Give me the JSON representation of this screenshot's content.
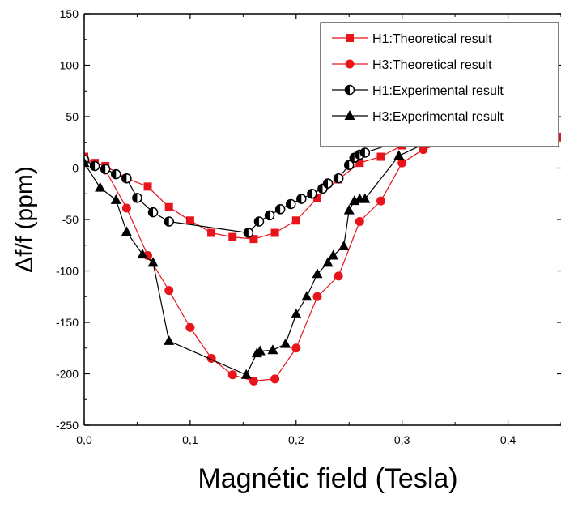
{
  "chart_data": {
    "type": "line",
    "xlabel": "Magnétic field (Tesla)",
    "ylabel": "Δf/f (ppm)",
    "xlim": [
      0.0,
      0.45
    ],
    "ylim": [
      -250,
      150
    ],
    "xticks": [
      0.0,
      0.1,
      0.2,
      0.3,
      0.4
    ],
    "xtick_labels": [
      "0,0",
      "0,1",
      "0,2",
      "0,3",
      "0,4"
    ],
    "yticks": [
      -250,
      -200,
      -150,
      -100,
      -50,
      0,
      50,
      100,
      150
    ],
    "ytick_labels": [
      "-250",
      "-200",
      "-150",
      "-100",
      "-50",
      "0",
      "50",
      "100",
      "150"
    ],
    "grid": false,
    "legend_position": "top-right",
    "series": [
      {
        "name": "H1:Theoretical result",
        "color": "#e8141b",
        "marker": "square",
        "x": [
          0.0,
          0.01,
          0.02,
          0.04,
          0.06,
          0.08,
          0.1,
          0.12,
          0.14,
          0.16,
          0.18,
          0.2,
          0.22,
          0.24,
          0.26,
          0.28,
          0.3,
          0.32,
          0.34,
          0.35,
          0.4,
          0.45
        ],
        "y": [
          11,
          5,
          2,
          -10,
          -18,
          -38,
          -51,
          -63,
          -67,
          -69,
          -63,
          -51,
          -29,
          -11,
          5,
          11,
          22,
          25,
          26,
          27,
          29,
          30
        ]
      },
      {
        "name": "H3:Theoretical result",
        "color": "#e8141b",
        "marker": "circle",
        "x": [
          0.0,
          0.01,
          0.02,
          0.04,
          0.06,
          0.08,
          0.1,
          0.12,
          0.14,
          0.16,
          0.18,
          0.2,
          0.22,
          0.24,
          0.26,
          0.28,
          0.3,
          0.32,
          0.34,
          0.35,
          0.4,
          0.45
        ],
        "y": [
          10,
          3,
          -2,
          -39,
          -85,
          -119,
          -155,
          -185,
          -201,
          -207,
          -205,
          -175,
          -125,
          -105,
          -52,
          -32,
          5,
          18,
          25,
          27,
          28,
          30
        ]
      },
      {
        "name": "H1:Experimental result",
        "color": "#000000",
        "marker": "half-circle",
        "x": [
          0.0,
          0.01,
          0.02,
          0.03,
          0.04,
          0.05,
          0.065,
          0.08,
          0.155,
          0.165,
          0.175,
          0.185,
          0.195,
          0.205,
          0.215,
          0.225,
          0.23,
          0.24,
          0.25,
          0.255,
          0.26,
          0.265,
          0.295
        ],
        "y": [
          8,
          2,
          -1,
          -6,
          -10,
          -29,
          -43,
          -52,
          -63,
          -52,
          -46,
          -40,
          -35,
          -30,
          -25,
          -20,
          -15,
          -10,
          3,
          10,
          13,
          15,
          25
        ]
      },
      {
        "name": "H3:Experimental result",
        "color": "#000000",
        "marker": "triangle",
        "x": [
          0.0,
          0.015,
          0.03,
          0.04,
          0.055,
          0.065,
          0.08,
          0.153,
          0.163,
          0.166,
          0.178,
          0.19,
          0.2,
          0.21,
          0.22,
          0.23,
          0.235,
          0.245,
          0.25,
          0.255,
          0.26,
          0.265,
          0.297,
          0.347,
          0.35
        ],
        "y": [
          5,
          -19,
          -31,
          -62,
          -84,
          -92,
          -168,
          -201,
          -180,
          -178,
          -177,
          -171,
          -142,
          -125,
          -103,
          -92,
          -85,
          -76,
          -41,
          -32,
          -30,
          -30,
          12,
          36,
          35
        ]
      }
    ]
  }
}
